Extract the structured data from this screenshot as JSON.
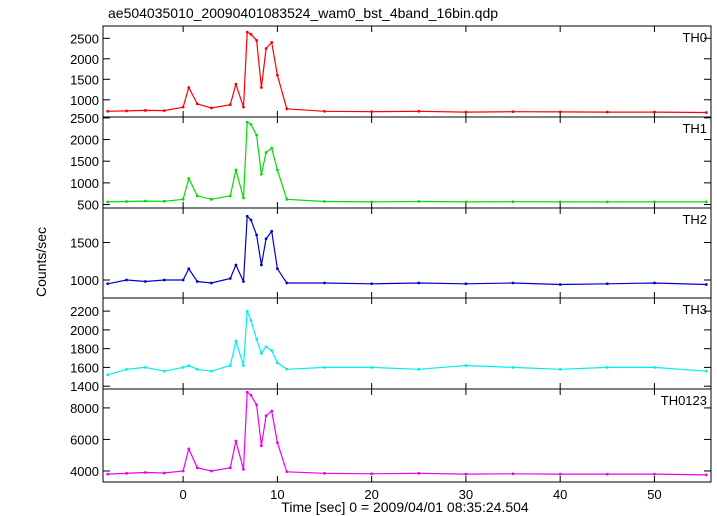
{
  "chart_data": {
    "type": "line",
    "title": "ae504035010_20090401083524_wam0_bst_4band_16bin.qdp",
    "xlabel": "Time [sec] 0 = 2009/04/01 08:35:24.504",
    "ylabel": "Counts/sec",
    "xlim": [
      -8.5,
      56
    ],
    "xticks": [
      0,
      10,
      20,
      30,
      40,
      50
    ],
    "xtick_labels": [
      "0",
      "10",
      "20",
      "30",
      "40",
      "50"
    ],
    "grid": false,
    "panels": [
      {
        "name": "TH0",
        "color": "#ff0000",
        "ylim": [
          580,
          2800
        ],
        "yticks": [
          1000,
          1500,
          2000,
          2500
        ],
        "ytick_labels": [
          "1000",
          "1500",
          "2000",
          "2500"
        ],
        "x": [
          -8,
          -6,
          -4,
          -2,
          0,
          0.6,
          1.5,
          3,
          5,
          5.6,
          6.4,
          6.8,
          7.2,
          7.8,
          8.3,
          8.8,
          9.4,
          10,
          11,
          15,
          20,
          25,
          30,
          35,
          40,
          45,
          50,
          55.5
        ],
        "y": [
          720,
          730,
          740,
          735,
          820,
          1300,
          900,
          800,
          880,
          1380,
          820,
          2650,
          2600,
          2450,
          1300,
          2250,
          2400,
          1600,
          780,
          720,
          710,
          720,
          700,
          710,
          705,
          700,
          700,
          690
        ]
      },
      {
        "name": "TH1",
        "color": "#00dd00",
        "ylim": [
          420,
          2520
        ],
        "yticks": [
          500,
          1000,
          1500,
          2000,
          2500
        ],
        "ytick_labels": [
          "500",
          "1000",
          "1500",
          "2000",
          "2500"
        ],
        "x": [
          -8,
          -6,
          -4,
          -2,
          0,
          0.6,
          1.5,
          3,
          5,
          5.6,
          6.4,
          6.8,
          7.2,
          7.8,
          8.3,
          8.8,
          9.4,
          10,
          11,
          15,
          20,
          25,
          30,
          35,
          40,
          45,
          50,
          55.5
        ],
        "y": [
          560,
          570,
          580,
          575,
          620,
          1100,
          700,
          620,
          700,
          1300,
          650,
          2400,
          2350,
          2100,
          1200,
          1700,
          1800,
          1300,
          620,
          570,
          560,
          570,
          560,
          565,
          560,
          560,
          560,
          560
        ]
      },
      {
        "name": "TH2",
        "color": "#0000cc",
        "ylim": [
          760,
          1960
        ],
        "yticks": [
          1000,
          1500
        ],
        "ytick_labels": [
          "1000",
          "1500"
        ],
        "x": [
          -8,
          -6,
          -4,
          -2,
          0,
          0.6,
          1.5,
          3,
          5,
          5.6,
          6.4,
          6.8,
          7.2,
          7.8,
          8.3,
          8.8,
          9.4,
          10,
          11,
          15,
          20,
          25,
          30,
          35,
          40,
          45,
          50,
          55.5
        ],
        "y": [
          950,
          1000,
          980,
          1000,
          1000,
          1150,
          980,
          960,
          1020,
          1200,
          980,
          1850,
          1800,
          1600,
          1200,
          1550,
          1650,
          1150,
          960,
          960,
          950,
          960,
          950,
          960,
          940,
          950,
          960,
          940
        ]
      },
      {
        "name": "TH3",
        "color": "#00eeee",
        "ylim": [
          1370,
          2340
        ],
        "yticks": [
          1400,
          1600,
          1800,
          2000,
          2200
        ],
        "ytick_labels": [
          "1400",
          "1600",
          "1800",
          "2000",
          "2200"
        ],
        "x": [
          -8,
          -6,
          -4,
          -2,
          0,
          0.6,
          1.5,
          3,
          5,
          5.6,
          6.4,
          6.8,
          7.2,
          7.8,
          8.3,
          8.8,
          9.4,
          10,
          11,
          15,
          20,
          25,
          30,
          35,
          40,
          45,
          50,
          55.5
        ],
        "y": [
          1520,
          1580,
          1600,
          1560,
          1600,
          1620,
          1580,
          1560,
          1620,
          1880,
          1620,
          2200,
          2100,
          1900,
          1750,
          1820,
          1780,
          1650,
          1580,
          1600,
          1600,
          1580,
          1620,
          1600,
          1580,
          1600,
          1600,
          1560
        ]
      },
      {
        "name": "TH0123",
        "color": "#ee00ee",
        "ylim": [
          3300,
          9200
        ],
        "yticks": [
          4000,
          6000,
          8000
        ],
        "ytick_labels": [
          "4000",
          "6000",
          "8000"
        ],
        "x": [
          -8,
          -6,
          -4,
          -2,
          0,
          0.6,
          1.5,
          3,
          5,
          5.6,
          6.4,
          6.8,
          7.2,
          7.8,
          8.3,
          8.8,
          9.4,
          10,
          11,
          15,
          20,
          25,
          30,
          35,
          40,
          45,
          50,
          55.5
        ],
        "y": [
          3800,
          3850,
          3900,
          3870,
          4000,
          5400,
          4200,
          4000,
          4200,
          5900,
          4100,
          9000,
          8800,
          8200,
          5600,
          7500,
          7800,
          5800,
          3950,
          3850,
          3820,
          3850,
          3800,
          3820,
          3800,
          3800,
          3800,
          3750
        ]
      }
    ]
  }
}
